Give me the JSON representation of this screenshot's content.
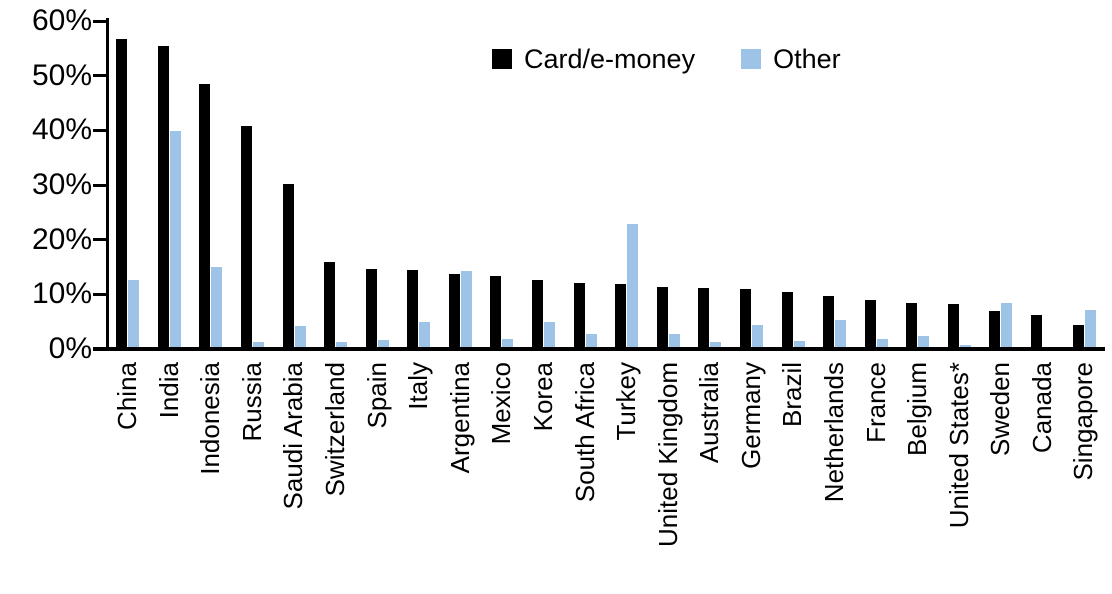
{
  "chart_data": {
    "type": "bar",
    "title": "",
    "xlabel": "",
    "ylabel": "",
    "ylim": [
      0,
      60
    ],
    "grid": false,
    "legend_position": "top-center",
    "y_ticks": [
      {
        "value": 60,
        "label": "60%"
      },
      {
        "value": 50,
        "label": "50%"
      },
      {
        "value": 40,
        "label": "40%"
      },
      {
        "value": 30,
        "label": "30%"
      },
      {
        "value": 20,
        "label": "20%"
      },
      {
        "value": 10,
        "label": "10%"
      },
      {
        "value": 0,
        "label": "0%"
      }
    ],
    "categories": [
      "China",
      "India",
      "Indonesia",
      "Russia",
      "Saudi Arabia",
      "Switzerland",
      "Spain",
      "Italy",
      "Argentina",
      "Mexico",
      "Korea",
      "South Africa",
      "Turkey",
      "United Kingdom",
      "Australia",
      "Germany",
      "Brazil",
      "Netherlands",
      "France",
      "Belgium",
      "United States*",
      "Sweden",
      "Canada",
      "Singapore"
    ],
    "series": [
      {
        "name": "Card/e-money",
        "color": "#000000",
        "values": [
          56.3,
          55.0,
          48.1,
          40.5,
          29.9,
          15.5,
          14.2,
          14.0,
          13.4,
          12.9,
          12.2,
          11.7,
          11.5,
          11.0,
          10.8,
          10.6,
          10.0,
          9.3,
          8.6,
          8.1,
          7.8,
          6.6,
          5.9,
          4.1
        ],
        "values_unit": "%"
      },
      {
        "name": "Other",
        "color": "#9DC3E6",
        "values": [
          12.3,
          39.6,
          14.6,
          1.0,
          3.9,
          0.9,
          1.2,
          4.6,
          13.9,
          1.5,
          4.6,
          2.4,
          22.5,
          2.4,
          1.0,
          4.0,
          1.1,
          4.9,
          1.5,
          2.0,
          0.3,
          8.0,
          0.0,
          6.7
        ],
        "values_unit": "%"
      }
    ]
  }
}
